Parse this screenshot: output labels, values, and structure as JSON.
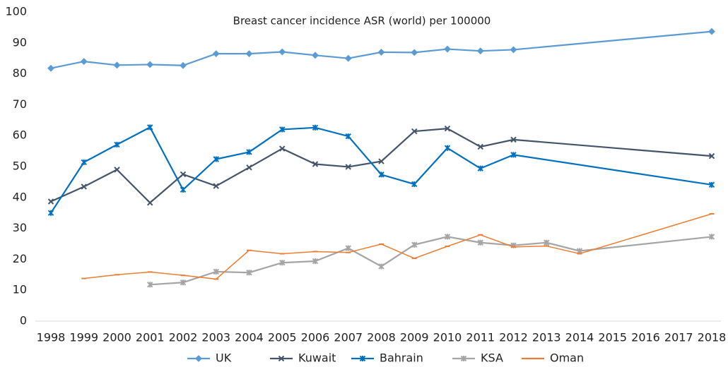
{
  "chart_data": {
    "type": "line",
    "title": "Breast cancer incidence ASR (world) per 100000",
    "xlim": [
      1998,
      2018
    ],
    "xticks": [
      1998,
      1999,
      2000,
      2001,
      2002,
      2003,
      2004,
      2005,
      2006,
      2007,
      2008,
      2009,
      2010,
      2011,
      2012,
      2013,
      2014,
      2015,
      2016,
      2017,
      2018
    ],
    "ylim": [
      0,
      100
    ],
    "yticks": [
      0,
      10,
      20,
      30,
      40,
      50,
      60,
      70,
      80,
      90,
      100
    ],
    "grid": false,
    "legend": "bottom",
    "series": [
      {
        "name": "UK",
        "color": "#5b9bd5",
        "x": [
          1998,
          1999,
          2000,
          2001,
          2002,
          2003,
          2004,
          2005,
          2006,
          2007,
          2008,
          2009,
          2010,
          2011,
          2012,
          2018
        ],
        "values": [
          81.8,
          84,
          82.8,
          83,
          82.7,
          86.5,
          86.5,
          87.1,
          86,
          85,
          87,
          86.9,
          88,
          87.4,
          87.8,
          93.7
        ]
      },
      {
        "name": "Kuwait",
        "color": "#44546a",
        "x": [
          1998,
          1999,
          2000,
          2001,
          2002,
          2003,
          2004,
          2005,
          2006,
          2007,
          2008,
          2009,
          2010,
          2011,
          2012,
          2018
        ],
        "values": [
          38.7,
          43.5,
          49,
          38.3,
          47.5,
          43.7,
          49.7,
          55.8,
          50.8,
          49.9,
          51.7,
          61.4,
          62.3,
          56.4,
          58.7,
          53.4
        ]
      },
      {
        "name": "Bahrain",
        "color": "#0070c0",
        "x": [
          1998,
          1999,
          2000,
          2001,
          2002,
          2003,
          2004,
          2005,
          2006,
          2007,
          2008,
          2009,
          2010,
          2011,
          2012,
          2018
        ],
        "values": [
          35,
          51.4,
          57.1,
          62.7,
          42.5,
          52.4,
          54.7,
          62,
          62.6,
          59.8,
          47.4,
          44.3,
          56,
          49.4,
          53.8,
          44.1
        ]
      },
      {
        "name": "KSA",
        "color": "#a5a5a5",
        "x": [
          2001,
          2002,
          2003,
          2004,
          2005,
          2006,
          2007,
          2008,
          2009,
          2010,
          2011,
          2012,
          2013,
          2014,
          2018
        ],
        "values": [
          11.8,
          12.5,
          16,
          15.7,
          18.9,
          19.4,
          23.6,
          17.7,
          24.7,
          27.3,
          25.4,
          24.5,
          25.4,
          22.7,
          27.3
        ]
      },
      {
        "name": "Oman",
        "color": "#ed7d31",
        "x": [
          1999,
          2000,
          2001,
          2002,
          2003,
          2004,
          2005,
          2006,
          2007,
          2008,
          2009,
          2010,
          2011,
          2012,
          2013,
          2014,
          2018
        ],
        "values": [
          13.8,
          15,
          15.9,
          14.8,
          13.6,
          22.9,
          21.8,
          22.5,
          22.2,
          24.9,
          20.3,
          24.2,
          27.9,
          24,
          24.3,
          21.8,
          34.7
        ]
      }
    ]
  }
}
